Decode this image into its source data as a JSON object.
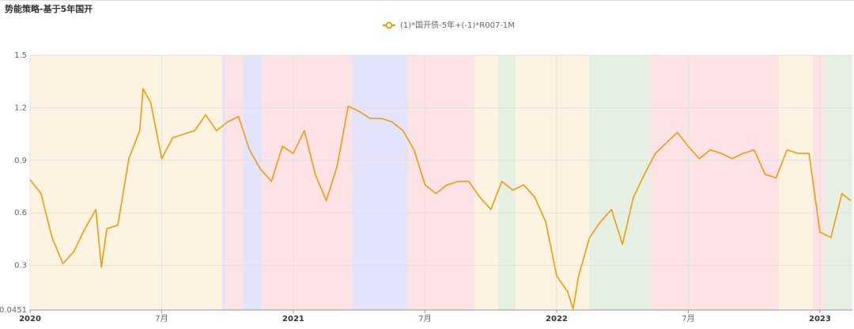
{
  "chart_data": {
    "type": "line",
    "title": "势能策略-基于5年国开",
    "x": [
      0,
      0.5,
      1,
      1.5,
      2,
      2.5,
      3,
      3.25,
      3.5,
      4,
      4.5,
      5,
      5.15,
      5.5,
      6,
      6.5,
      7,
      7.5,
      8,
      8.5,
      9,
      9.5,
      10,
      10.5,
      11,
      11.5,
      12,
      12.5,
      13,
      13.5,
      14,
      14.5,
      15,
      15.5,
      16,
      16.5,
      17,
      17.5,
      18,
      18.5,
      19,
      19.5,
      20,
      20.5,
      21,
      21.5,
      22,
      22.5,
      23,
      23.5,
      24,
      24.5,
      24.75,
      25,
      25.5,
      26,
      26.5,
      27,
      27.5,
      28,
      28.5,
      29,
      29.5,
      30,
      30.5,
      31,
      31.5,
      32,
      32.5,
      33,
      33.5,
      34,
      34.5,
      35,
      35.5,
      36,
      36.5,
      37,
      37.4
    ],
    "series": [
      {
        "name": "(1)*国开债-5年+(-1)*R007-1M",
        "color": "#f59a0c",
        "values": [
          0.79,
          0.71,
          0.46,
          0.31,
          0.38,
          0.51,
          0.62,
          0.29,
          0.51,
          0.53,
          0.91,
          1.07,
          1.31,
          1.23,
          0.91,
          1.03,
          1.05,
          1.07,
          1.16,
          1.07,
          1.12,
          1.15,
          0.96,
          0.85,
          0.78,
          0.98,
          0.94,
          1.07,
          0.82,
          0.67,
          0.87,
          1.21,
          1.18,
          1.14,
          1.14,
          1.12,
          1.07,
          0.96,
          0.76,
          0.71,
          0.76,
          0.78,
          0.78,
          0.69,
          0.62,
          0.78,
          0.73,
          0.76,
          0.69,
          0.55,
          0.24,
          0.15,
          0.05,
          0.24,
          0.46,
          0.55,
          0.62,
          0.42,
          0.69,
          0.82,
          0.94,
          1.0,
          1.06,
          0.98,
          0.91,
          0.96,
          0.94,
          0.91,
          0.94,
          0.96,
          0.82,
          0.8,
          0.96,
          0.94,
          0.94,
          0.49,
          0.46,
          0.71,
          0.67
        ]
      }
    ],
    "regions": [
      {
        "start": 0,
        "end": 8.76,
        "color": "#fdf3e1"
      },
      {
        "start": 8.76,
        "end": 8.9,
        "color": "#e3e3fb"
      },
      {
        "start": 8.9,
        "end": 9.73,
        "color": "#fde3e6"
      },
      {
        "start": 9.73,
        "end": 10.56,
        "color": "#e3e3fb"
      },
      {
        "start": 10.56,
        "end": 14.67,
        "color": "#fde3e6"
      },
      {
        "start": 14.67,
        "end": 17.23,
        "color": "#e3e3fb"
      },
      {
        "start": 17.23,
        "end": 20.25,
        "color": "#fde3e6"
      },
      {
        "start": 20.25,
        "end": 21.33,
        "color": "#fdf3e1"
      },
      {
        "start": 21.33,
        "end": 22.13,
        "color": "#e5f0e3"
      },
      {
        "start": 22.13,
        "end": 25.48,
        "color": "#fdf3e1"
      },
      {
        "start": 25.48,
        "end": 28.25,
        "color": "#e5f0e3"
      },
      {
        "start": 28.25,
        "end": 34.13,
        "color": "#fde3e6"
      },
      {
        "start": 34.13,
        "end": 35.68,
        "color": "#fdf3e1"
      },
      {
        "start": 35.68,
        "end": 36.25,
        "color": "#fde3e6"
      },
      {
        "start": 36.25,
        "end": 37.48,
        "color": "#e5f0e3"
      }
    ],
    "xlim": [
      0,
      37.48
    ],
    "xticks": [
      {
        "value": 0,
        "label": "2020"
      },
      {
        "value": 6,
        "label": "7月"
      },
      {
        "value": 12,
        "label": "2021"
      },
      {
        "value": 18,
        "label": "7月"
      },
      {
        "value": 24,
        "label": "2022"
      },
      {
        "value": 30,
        "label": "7月"
      },
      {
        "value": 36,
        "label": "2023"
      }
    ],
    "ylim": [
      0.0451,
      1.5
    ],
    "yticks": [
      0.0451,
      0.3,
      0.6,
      0.9,
      1.2,
      1.5
    ],
    "grid": true
  }
}
